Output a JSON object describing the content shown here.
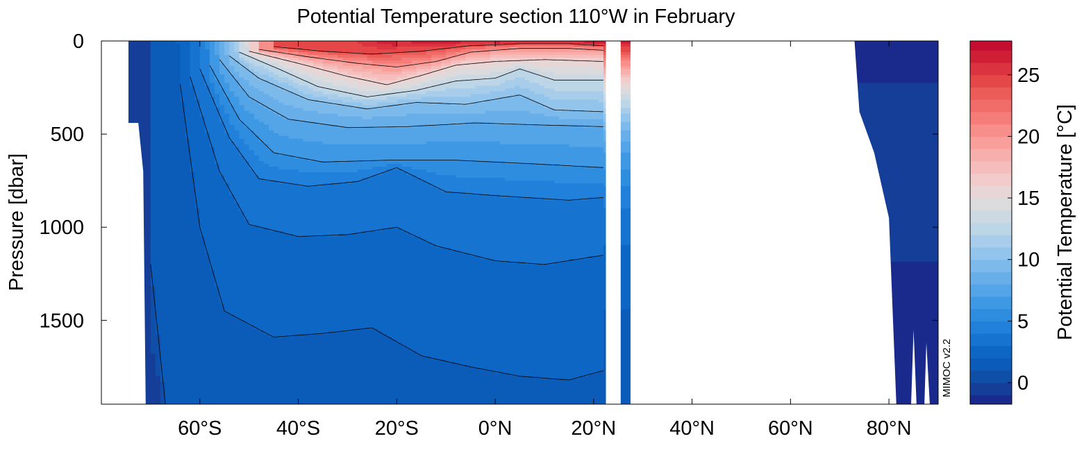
{
  "chart_data": {
    "type": "heatmap",
    "subtype": "filled-contour section",
    "title": "Potential Temperature section 110°W in February",
    "xlabel": "",
    "ylabel": "Pressure [dbar]",
    "colorbar_label": "Potential Temperature [°C]",
    "watermark": "MIMOC v2.2",
    "x_ticks": [
      {
        "value": -60,
        "label": "60°S"
      },
      {
        "value": -40,
        "label": "40°S"
      },
      {
        "value": -20,
        "label": "20°S"
      },
      {
        "value": 0,
        "label": "0°N"
      },
      {
        "value": 20,
        "label": "20°N"
      },
      {
        "value": 40,
        "label": "40°N"
      },
      {
        "value": 60,
        "label": "60°N"
      },
      {
        "value": 80,
        "label": "80°N"
      }
    ],
    "y_ticks": [
      {
        "value": 0,
        "label": "0"
      },
      {
        "value": 500,
        "label": "500"
      },
      {
        "value": 1000,
        "label": "1000"
      },
      {
        "value": 1500,
        "label": "1500"
      }
    ],
    "xlim": [
      -80,
      90
    ],
    "ylim": [
      0,
      1950
    ],
    "y_inverted": true,
    "colorbar_ticks": [
      {
        "value": 0,
        "label": "0"
      },
      {
        "value": 5,
        "label": "5"
      },
      {
        "value": 10,
        "label": "10"
      },
      {
        "value": 15,
        "label": "15"
      },
      {
        "value": 20,
        "label": "20"
      },
      {
        "value": 25,
        "label": "25"
      }
    ],
    "colorbar_range": [
      -1.75,
      27.75
    ],
    "contour_levels": [
      -1,
      0,
      1,
      2,
      3,
      4,
      5,
      6,
      7,
      8,
      9,
      10,
      11,
      12,
      13,
      14,
      15,
      16,
      17,
      18,
      19,
      20,
      21,
      22,
      23,
      24,
      25,
      26,
      27
    ],
    "colors": [
      "#1a2a8c",
      "#143e98",
      "#0f4fa8",
      "#0a5cb8",
      "#0d66c4",
      "#1674d0",
      "#2080da",
      "#2f8ddf",
      "#3f98e4",
      "#54a4e8",
      "#68afea",
      "#7dbaec",
      "#92c4ec",
      "#a7cdeb",
      "#bcd6e8",
      "#cdd9e2",
      "#dbdbdd",
      "#e8d6d6",
      "#f1cccb",
      "#f5bebc",
      "#f7afac",
      "#f89f9b",
      "#f78e8a",
      "#f47d79",
      "#f06c68",
      "#eb5b57",
      "#e54647",
      "#dc3340",
      "#cf1f37",
      "#c50c31"
    ],
    "isotherm_depth_profiles": [
      {
        "level": 24,
        "depth": [
          [
            -45,
            30
          ],
          [
            -35,
            55
          ],
          [
            -25,
            70
          ],
          [
            -15,
            55
          ],
          [
            -5,
            25
          ],
          [
            5,
            15
          ],
          [
            15,
            15
          ],
          [
            22,
            25
          ]
        ]
      },
      {
        "level": 20,
        "depth": [
          [
            -48,
            45
          ],
          [
            -38,
            85
          ],
          [
            -28,
            120
          ],
          [
            -20,
            140
          ],
          [
            -12,
            110
          ],
          [
            -5,
            60
          ],
          [
            5,
            40
          ],
          [
            15,
            40
          ],
          [
            22,
            50
          ]
        ]
      },
      {
        "level": 16,
        "depth": [
          [
            -50,
            55
          ],
          [
            -40,
            120
          ],
          [
            -30,
            190
          ],
          [
            -22,
            235
          ],
          [
            -15,
            185
          ],
          [
            -8,
            130
          ],
          [
            0,
            110
          ],
          [
            10,
            100
          ],
          [
            22,
            110
          ]
        ]
      },
      {
        "level": 13,
        "depth": [
          [
            -52,
            60
          ],
          [
            -44,
            150
          ],
          [
            -36,
            245
          ],
          [
            -26,
            300
          ],
          [
            -16,
            265
          ],
          [
            -8,
            215
          ],
          [
            0,
            200
          ],
          [
            5,
            150
          ],
          [
            12,
            210
          ],
          [
            22,
            210
          ]
        ]
      },
      {
        "level": 10,
        "depth": [
          [
            -54,
            80
          ],
          [
            -48,
            200
          ],
          [
            -38,
            315
          ],
          [
            -26,
            365
          ],
          [
            -16,
            330
          ],
          [
            -6,
            340
          ],
          [
            5,
            290
          ],
          [
            12,
            370
          ],
          [
            22,
            380
          ]
        ]
      },
      {
        "level": 8,
        "depth": [
          [
            -56,
            100
          ],
          [
            -50,
            300
          ],
          [
            -42,
            420
          ],
          [
            -30,
            465
          ],
          [
            -18,
            460
          ],
          [
            -4,
            440
          ],
          [
            8,
            450
          ],
          [
            22,
            460
          ]
        ]
      },
      {
        "level": 6,
        "depth": [
          [
            -58,
            130
          ],
          [
            -52,
            420
          ],
          [
            -45,
            600
          ],
          [
            -35,
            650
          ],
          [
            -22,
            640
          ],
          [
            -8,
            640
          ],
          [
            8,
            660
          ],
          [
            22,
            680
          ]
        ]
      },
      {
        "level": 4,
        "depth": [
          [
            -60,
            150
          ],
          [
            -54,
            520
          ],
          [
            -48,
            740
          ],
          [
            -38,
            780
          ],
          [
            -28,
            755
          ],
          [
            -20,
            680
          ],
          [
            -10,
            810
          ],
          [
            0,
            830
          ],
          [
            15,
            855
          ],
          [
            22,
            840
          ]
        ]
      },
      {
        "level": 3,
        "depth": [
          [
            -62,
            190
          ],
          [
            -56,
            700
          ],
          [
            -50,
            985
          ],
          [
            -40,
            1050
          ],
          [
            -30,
            1040
          ],
          [
            -20,
            1000
          ],
          [
            -12,
            1100
          ],
          [
            0,
            1180
          ],
          [
            10,
            1200
          ],
          [
            22,
            1150
          ]
        ]
      },
      {
        "level": 2,
        "depth": [
          [
            -64,
            230
          ],
          [
            -60,
            1000
          ],
          [
            -55,
            1450
          ],
          [
            -45,
            1590
          ],
          [
            -35,
            1570
          ],
          [
            -25,
            1540
          ],
          [
            -15,
            1690
          ],
          [
            -5,
            1750
          ],
          [
            5,
            1800
          ],
          [
            15,
            1820
          ],
          [
            22,
            1770
          ]
        ]
      },
      {
        "level": 1,
        "depth": [
          [
            -70,
            1200
          ],
          [
            -67,
            1950
          ]
        ]
      }
    ]
  }
}
